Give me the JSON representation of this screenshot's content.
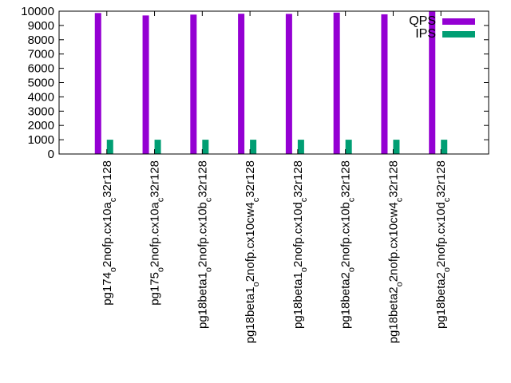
{
  "chart_data": {
    "type": "bar",
    "title": "",
    "xlabel": "",
    "ylabel": "",
    "ylim": [
      0,
      10000
    ],
    "yticks": [
      0,
      1000,
      2000,
      3000,
      4000,
      5000,
      6000,
      7000,
      8000,
      9000,
      10000
    ],
    "grid": false,
    "legend_position": "top-right",
    "categories": [
      {
        "main": "pg174",
        "sub1": "o",
        "mid": "2nofp.cx10a",
        "sub2": "c",
        "tail": "32r128"
      },
      {
        "main": "pg175",
        "sub1": "o",
        "mid": "2nofp.cx10a",
        "sub2": "c",
        "tail": "32r128"
      },
      {
        "main": "pg18beta1",
        "sub1": "o",
        "mid": "2nofp.cx10b",
        "sub2": "c",
        "tail": "32r128"
      },
      {
        "main": "pg18beta1",
        "sub1": "o",
        "mid": "2nofp.cx10cw4",
        "sub2": "c",
        "tail": "32r128"
      },
      {
        "main": "pg18beta1",
        "sub1": "o",
        "mid": "2nofp.cx10d",
        "sub2": "c",
        "tail": "32r128"
      },
      {
        "main": "pg18beta2",
        "sub1": "o",
        "mid": "2nofp.cx10b",
        "sub2": "c",
        "tail": "32r128"
      },
      {
        "main": "pg18beta2",
        "sub1": "o",
        "mid": "2nofp.cx10cw4",
        "sub2": "c",
        "tail": "32r128"
      },
      {
        "main": "pg18beta2",
        "sub1": "o",
        "mid": "2nofp.cx10d",
        "sub2": "c",
        "tail": "32r128"
      }
    ],
    "series": [
      {
        "name": "QPS",
        "color": "#9400d3",
        "values": [
          9870,
          9700,
          9760,
          9820,
          9810,
          9900,
          9780,
          10000
        ]
      },
      {
        "name": "IPS",
        "color": "#009e73",
        "values": [
          1000,
          1000,
          1000,
          1000,
          1000,
          1000,
          1000,
          1000
        ]
      }
    ]
  }
}
